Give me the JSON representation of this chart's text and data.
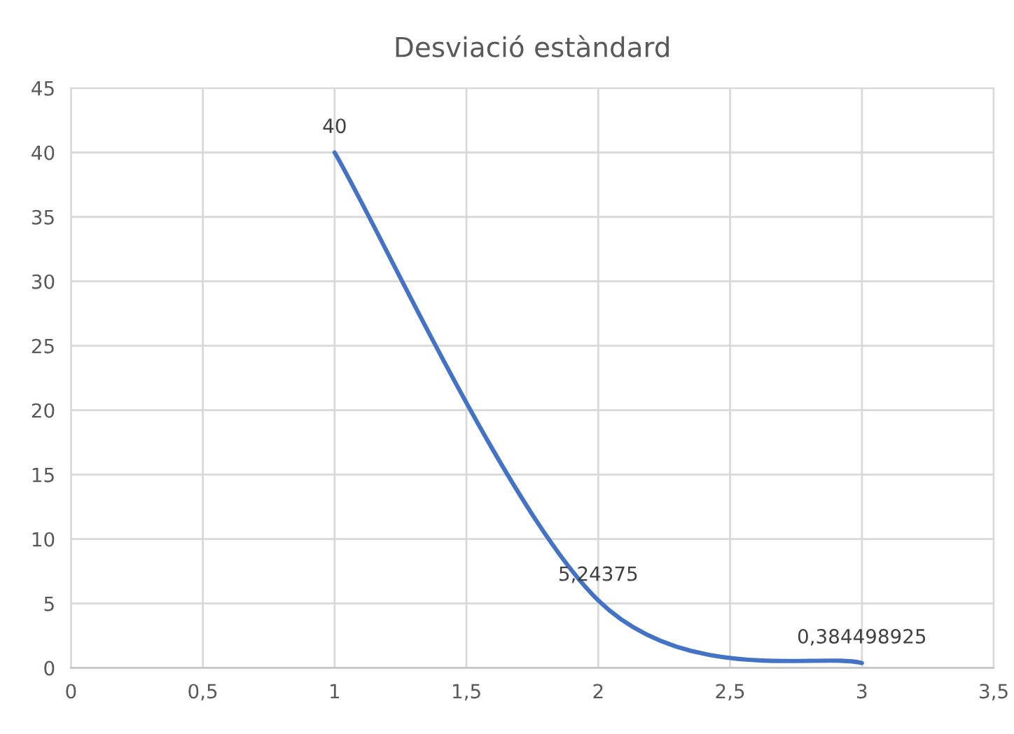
{
  "chart_data": {
    "type": "line",
    "title": "Desviació estàndard",
    "x": [
      1,
      2,
      3
    ],
    "series": [
      {
        "color": "#4472c4",
        "values": [
          40,
          5.24375,
          0.384498925
        ],
        "value_labels": [
          "40",
          "5,24375",
          "0,384498925"
        ]
      }
    ],
    "xlim": [
      0,
      3.5
    ],
    "xticks": [
      0,
      {
        "value": 0.5,
        "label": "0,5"
      },
      1,
      {
        "value": 1.5,
        "label": "1,5"
      },
      2,
      {
        "value": 2.5,
        "label": "2,5"
      },
      3,
      {
        "value": 3.5,
        "label": "3,5"
      }
    ],
    "ylim": [
      0,
      45
    ],
    "yticks": [
      0,
      5,
      10,
      15,
      20,
      25,
      30,
      35,
      40,
      45
    ],
    "grid": true,
    "marker": "none",
    "line_style": "solid"
  }
}
